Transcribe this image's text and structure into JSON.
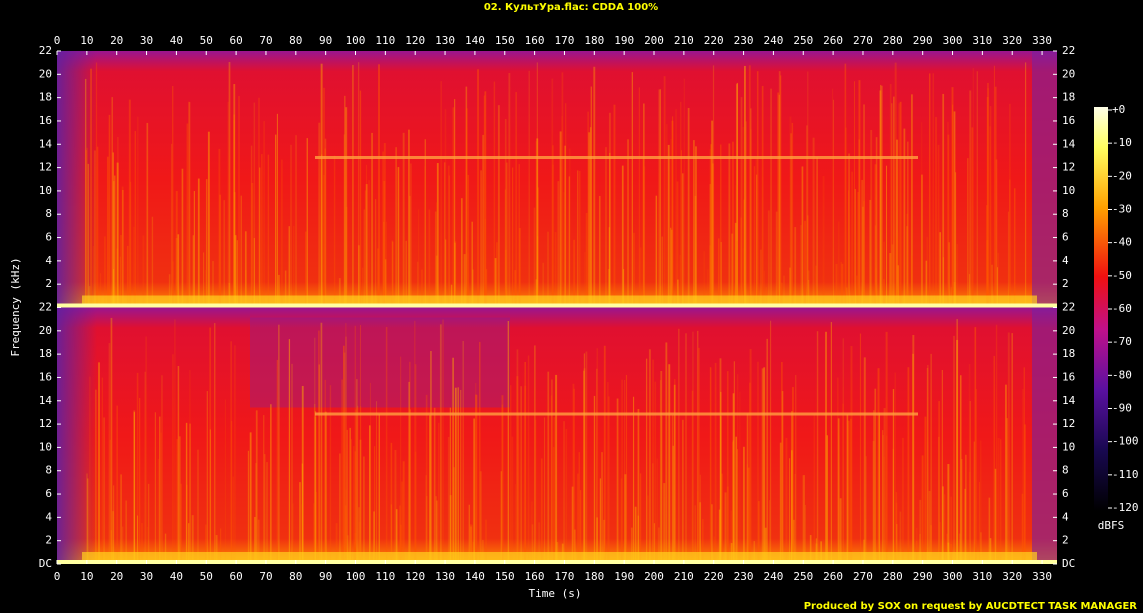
{
  "chart_data": {
    "type": "spectrogram",
    "title": "02. КультУра.flac: CDDA 100%",
    "x_label": "Time (s)",
    "y_label": "Frequency (kHz)",
    "xlim": [
      0,
      335
    ],
    "xticks": [
      0,
      10,
      20,
      30,
      40,
      50,
      60,
      70,
      80,
      90,
      100,
      110,
      120,
      130,
      140,
      150,
      160,
      170,
      180,
      190,
      200,
      210,
      220,
      230,
      240,
      250,
      260,
      270,
      280,
      290,
      300,
      310,
      320,
      330
    ],
    "ylim": [
      0,
      22
    ],
    "yticks": [
      {
        "value": 0,
        "label": "DC"
      },
      2,
      4,
      6,
      8,
      10,
      12,
      14,
      16,
      18,
      20,
      22
    ],
    "colorbar": {
      "label": "dBFS",
      "lim": [
        -120,
        0
      ],
      "ticks": [
        {
          "value": 0,
          "label": "+0"
        },
        -10,
        -20,
        -30,
        -40,
        -50,
        -60,
        -70,
        -80,
        -90,
        -100,
        -110,
        -120
      ]
    }
  },
  "footer": "Produced by SOX on request by AUCDTECT TASK MANAGER"
}
